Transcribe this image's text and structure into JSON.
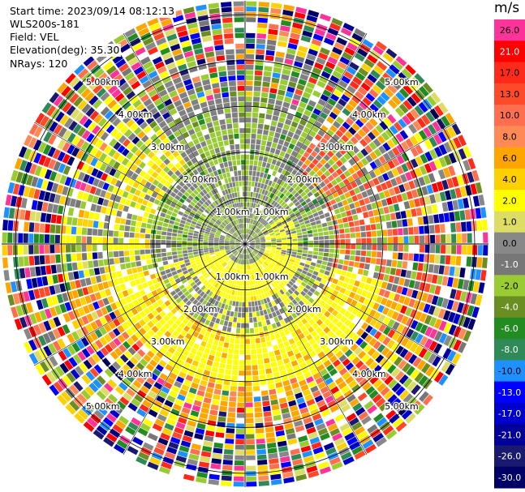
{
  "header": {
    "start_time": "Start time: 2023/09/14 08:12:13",
    "instrument": "WLS200s-181",
    "field": "Field: VEL",
    "elevation": "Elevation(deg): 35.30",
    "nrays": "NRays: 120"
  },
  "chart_data": {
    "type": "heatmap",
    "subtype": "ppi-polar-scan",
    "field": "VEL",
    "n_rays": 120,
    "elevation_deg": 35.3,
    "range_rings_km": [
      1.0,
      2.0,
      3.0,
      4.0,
      5.0
    ],
    "range_labels": [
      "1.00km",
      "2.00km",
      "3.00km",
      "4.00km",
      "5.00km"
    ],
    "max_range_km": 5.3,
    "colorbar": {
      "unit": "m/s",
      "ticks": [
        "26.0",
        "21.0",
        "17.0",
        "13.0",
        "10.0",
        "8.0",
        "6.0",
        "4.0",
        "2.0",
        "1.0",
        "0.0",
        "-1.0",
        "-2.0",
        "-4.0",
        "-6.0",
        "-8.0",
        "-10.0",
        "-13.0",
        "-17.0",
        "-21.0",
        "-26.0",
        "-30.0"
      ],
      "colors": [
        "#ff3399",
        "#ff0000",
        "#ff2a1a",
        "#ff4a2a",
        "#ff6f4f",
        "#ff8a55",
        "#ffa500",
        "#ffd000",
        "#ffff00",
        "#dddd66",
        "#888888",
        "#777777",
        "#99cc33",
        "#6b8e23",
        "#228b22",
        "#2e8b57",
        "#1e90ff",
        "#0000ff",
        "#0000cc",
        "#000099",
        "#191970",
        "#000066"
      ]
    }
  }
}
